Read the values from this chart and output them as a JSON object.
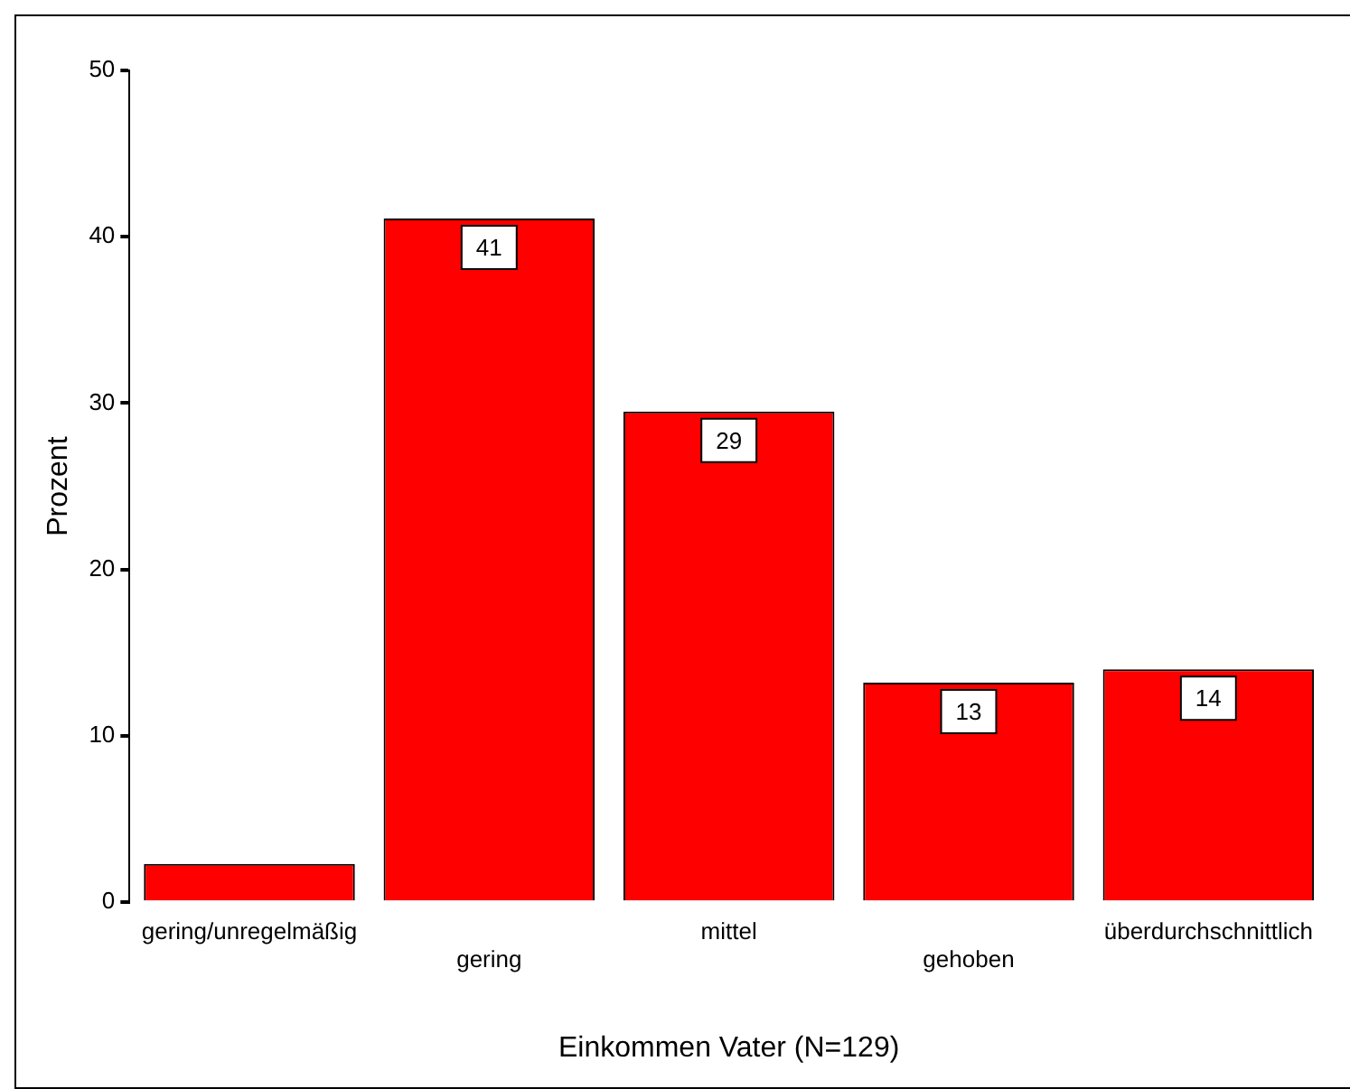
{
  "chart_data": {
    "type": "bar",
    "xlabel": "Einkommen Vater (N=129)",
    "ylabel": "Prozent",
    "categories": [
      "gering/unregelmäßig",
      "gering",
      "mittel",
      "gehoben",
      "überdurchschnittlich"
    ],
    "values": [
      2.3,
      41.1,
      29.5,
      13.2,
      14.0
    ],
    "value_labels": [
      null,
      "41",
      "29",
      "13",
      "14"
    ],
    "color": "#ff0000",
    "ylim": [
      0,
      50
    ],
    "yticks": [
      0,
      10,
      20,
      30,
      40,
      50
    ],
    "grid": false,
    "legend": false
  }
}
